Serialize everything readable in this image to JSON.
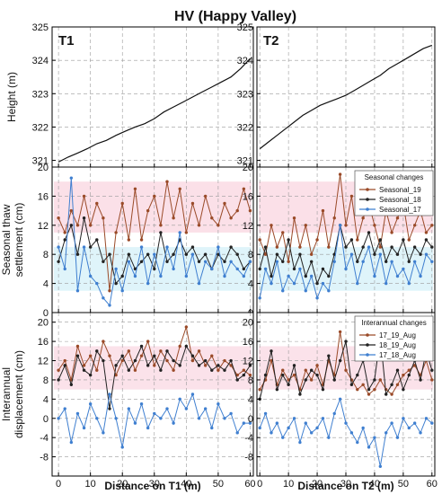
{
  "figure": {
    "title": "HV (Happy Valley)",
    "panel_labels": [
      "T1",
      "T2"
    ],
    "xlabels": [
      "Distance on T1 (m)",
      "Distance on T2 (m)"
    ],
    "ylabels": {
      "height": [
        "Height (m)"
      ],
      "seasonal": [
        "Seasonal thaw",
        "settlement (cm)"
      ],
      "interannual": [
        "Interannual",
        "displacement (cm)"
      ]
    },
    "legend_seasonal_title": "Seasonal changes",
    "legend_interannual_title": "Interannual changes",
    "colors": {
      "Seasonal_19": "#9a4a28",
      "Seasonal_18": "#222222",
      "Seasonal_17": "#3f7fd0",
      "17_19_Aug": "#9a4a28",
      "18_19_Aug": "#222222",
      "17_18_Aug": "#3f7fd0",
      "height_line": "#111111",
      "seasonal_band": "#f7c6d6",
      "seasonal_band_blue": "#c9ecf6",
      "interannual_band": "#f7c6d6"
    }
  },
  "chart_data": [
    {
      "type": "line",
      "row": "height",
      "transect": "T1",
      "xlim": [
        -2,
        61
      ],
      "ylim": [
        320.8,
        325
      ],
      "xticks": [
        0,
        10,
        20,
        30,
        40,
        50,
        60
      ],
      "yticks": [
        321,
        322,
        323,
        324,
        325
      ],
      "ylabel": "Height (m)",
      "grid": true,
      "series": [
        {
          "x": [
            0,
            3,
            6,
            9,
            12,
            15,
            18,
            21,
            24,
            27,
            30,
            33,
            36,
            39,
            42,
            45,
            48,
            51,
            54,
            57,
            60
          ],
          "y": [
            320.95,
            321.1,
            321.22,
            321.35,
            321.5,
            321.6,
            321.75,
            321.88,
            322.0,
            322.1,
            322.25,
            322.45,
            322.6,
            322.75,
            322.9,
            323.05,
            323.2,
            323.35,
            323.5,
            323.75,
            324.05
          ]
        }
      ]
    },
    {
      "type": "line",
      "row": "height",
      "transect": "T2",
      "xlim": [
        -1,
        61
      ],
      "ylim": [
        320.8,
        325
      ],
      "xticks": [
        0,
        10,
        20,
        30,
        40,
        50,
        60
      ],
      "yticks": [
        321,
        322,
        323,
        324,
        325
      ],
      "ylabel": "",
      "grid": true,
      "series": [
        {
          "x": [
            0,
            3,
            6,
            9,
            12,
            15,
            18,
            21,
            24,
            27,
            30,
            33,
            36,
            39,
            42,
            45,
            48,
            51,
            54,
            57,
            60
          ],
          "y": [
            321.35,
            321.55,
            321.75,
            321.95,
            322.15,
            322.35,
            322.5,
            322.65,
            322.75,
            322.85,
            322.95,
            323.1,
            323.25,
            323.4,
            323.55,
            323.75,
            323.9,
            324.05,
            324.2,
            324.35,
            324.45
          ]
        }
      ]
    },
    {
      "type": "line",
      "row": "seasonal",
      "transect": "T1",
      "xlim": [
        -2,
        61
      ],
      "ylim": [
        0,
        20
      ],
      "xticks": [
        0,
        10,
        20,
        30,
        40,
        50,
        60
      ],
      "yticks": [
        0,
        4,
        8,
        12,
        16,
        20
      ],
      "ylabel": "Seasonal thaw settlement (cm)",
      "grid": true,
      "series": [
        {
          "name": "Seasonal_19",
          "x": [
            0,
            2,
            4,
            6,
            8,
            10,
            12,
            14,
            16,
            18,
            20,
            22,
            24,
            26,
            28,
            30,
            32,
            34,
            36,
            38,
            40,
            42,
            44,
            46,
            48,
            50,
            52,
            54,
            56,
            58,
            60
          ],
          "y": [
            13,
            11,
            14,
            12,
            16,
            12,
            15,
            13,
            3,
            11,
            15,
            10,
            17,
            10,
            14,
            16,
            12,
            18,
            13,
            17,
            11,
            15,
            12,
            16,
            13,
            12,
            15,
            13,
            14,
            17,
            14
          ]
        },
        {
          "name": "Seasonal_18",
          "x": [
            0,
            2,
            4,
            6,
            8,
            10,
            12,
            14,
            16,
            18,
            20,
            22,
            24,
            26,
            28,
            30,
            32,
            34,
            36,
            38,
            40,
            42,
            44,
            46,
            48,
            50,
            52,
            54,
            56,
            58,
            60
          ],
          "y": [
            7,
            10,
            12,
            8,
            13,
            9,
            10,
            7,
            8,
            4,
            5,
            8,
            6,
            7,
            8,
            6,
            11,
            7,
            8,
            10,
            8,
            9,
            7,
            8,
            6,
            8,
            7,
            9,
            8,
            6,
            7
          ]
        },
        {
          "name": "Seasonal_17",
          "x": [
            0,
            2,
            4,
            6,
            8,
            10,
            12,
            14,
            16,
            18,
            20,
            22,
            24,
            26,
            28,
            30,
            32,
            34,
            36,
            38,
            40,
            42,
            44,
            46,
            48,
            50,
            52,
            54,
            56,
            58,
            60
          ],
          "y": [
            9,
            6,
            18.5,
            3,
            9,
            5,
            4,
            2,
            1,
            6,
            3,
            7,
            5,
            9,
            4,
            8,
            5,
            9,
            6,
            11,
            5,
            8,
            4,
            7,
            6,
            9,
            5,
            7,
            6,
            5,
            7
          ]
        }
      ]
    },
    {
      "type": "line",
      "row": "seasonal",
      "transect": "T2",
      "xlim": [
        -1,
        61
      ],
      "ylim": [
        0,
        20
      ],
      "xticks": [
        0,
        10,
        20,
        30,
        40,
        50,
        60
      ],
      "yticks": [
        0,
        4,
        8,
        12,
        16,
        20
      ],
      "ylabel": "",
      "grid": true,
      "legend": "top-right",
      "legend_title": "Seasonal changes",
      "series": [
        {
          "name": "Seasonal_19",
          "x": [
            0,
            2,
            4,
            6,
            8,
            10,
            12,
            14,
            16,
            18,
            20,
            22,
            24,
            26,
            28,
            30,
            32,
            34,
            36,
            38,
            40,
            42,
            44,
            46,
            48,
            50,
            52,
            54,
            56,
            58,
            60
          ],
          "y": [
            10,
            8,
            12,
            9,
            11,
            7,
            13,
            9,
            12,
            8,
            10,
            14,
            9,
            13,
            19,
            12,
            16,
            10,
            13,
            15,
            12,
            9,
            14,
            11,
            13,
            15,
            10,
            12,
            14,
            11,
            12
          ]
        },
        {
          "name": "Seasonal_18",
          "x": [
            0,
            2,
            4,
            6,
            8,
            10,
            12,
            14,
            16,
            18,
            20,
            22,
            24,
            26,
            28,
            30,
            32,
            34,
            36,
            38,
            40,
            42,
            44,
            46,
            48,
            50,
            52,
            54,
            56,
            58,
            60
          ],
          "y": [
            6,
            9,
            5,
            8,
            7,
            10,
            6,
            8,
            5,
            7,
            4,
            6,
            5,
            8,
            12,
            9,
            10,
            7,
            9,
            11,
            8,
            10,
            7,
            9,
            8,
            10,
            7,
            9,
            8,
            10,
            9
          ]
        },
        {
          "name": "Seasonal_17",
          "x": [
            0,
            2,
            4,
            6,
            8,
            10,
            12,
            14,
            16,
            18,
            20,
            22,
            24,
            26,
            28,
            30,
            32,
            34,
            36,
            38,
            40,
            42,
            44,
            46,
            48,
            50,
            52,
            54,
            56,
            58,
            60
          ],
          "y": [
            2,
            6,
            4,
            7,
            3,
            5,
            4,
            6,
            3,
            5,
            2,
            4,
            3,
            7,
            12,
            6,
            8,
            4,
            7,
            9,
            5,
            8,
            4,
            7,
            5,
            6,
            4,
            7,
            5,
            8,
            7
          ]
        }
      ]
    },
    {
      "type": "line",
      "row": "interannual",
      "transect": "T1",
      "xlim": [
        -2,
        61
      ],
      "ylim": [
        -12,
        22
      ],
      "xticks": [
        0,
        10,
        20,
        30,
        40,
        50,
        60
      ],
      "yticks": [
        -8,
        -4,
        0,
        4,
        8,
        12,
        16,
        20
      ],
      "ylabel": "Interannual displacement (cm)",
      "xlabel": "Distance on T1 (m)",
      "grid": true,
      "series": [
        {
          "name": "17_19_Aug",
          "x": [
            0,
            2,
            4,
            6,
            8,
            10,
            12,
            14,
            16,
            18,
            20,
            22,
            24,
            26,
            28,
            30,
            32,
            34,
            36,
            38,
            40,
            42,
            44,
            46,
            48,
            50,
            52,
            54,
            56,
            58,
            60
          ],
          "y": [
            10,
            12,
            8,
            15,
            11,
            13,
            10,
            16,
            13,
            9,
            12,
            14,
            10,
            13,
            16,
            11,
            14,
            12,
            10,
            15,
            19,
            12,
            14,
            11,
            13,
            10,
            12,
            11,
            9,
            10,
            9
          ]
        },
        {
          "name": "18_19_Aug",
          "x": [
            0,
            2,
            4,
            6,
            8,
            10,
            12,
            14,
            16,
            18,
            20,
            22,
            24,
            26,
            28,
            30,
            32,
            34,
            36,
            38,
            40,
            42,
            44,
            46,
            48,
            50,
            52,
            54,
            56,
            58,
            60
          ],
          "y": [
            8,
            11,
            7,
            13,
            10,
            9,
            14,
            12,
            2,
            11,
            13,
            10,
            12,
            15,
            11,
            13,
            10,
            14,
            12,
            11,
            15,
            13,
            11,
            12,
            10,
            11,
            10,
            12,
            8,
            9,
            11
          ]
        },
        {
          "name": "17_18_Aug",
          "x": [
            0,
            2,
            4,
            6,
            8,
            10,
            12,
            14,
            16,
            18,
            20,
            22,
            24,
            26,
            28,
            30,
            32,
            34,
            36,
            38,
            40,
            42,
            44,
            46,
            48,
            50,
            52,
            54,
            56,
            58,
            60
          ],
          "y": [
            0,
            2,
            -5,
            1,
            -2,
            3,
            0,
            -3,
            5,
            0,
            -6,
            2,
            -1,
            3,
            -2,
            1,
            0,
            2,
            -1,
            4,
            2,
            5,
            0,
            2,
            -2,
            3,
            0,
            1,
            -3,
            -1,
            -1
          ]
        }
      ]
    },
    {
      "type": "line",
      "row": "interannual",
      "transect": "T2",
      "xlim": [
        -1,
        61
      ],
      "ylim": [
        -12,
        22
      ],
      "xticks": [
        0,
        10,
        20,
        30,
        40,
        50,
        60
      ],
      "yticks": [
        -8,
        -4,
        0,
        4,
        8,
        12,
        16,
        20
      ],
      "ylabel": "",
      "xlabel": "Distance on T2 (m)",
      "grid": true,
      "legend": "top-right",
      "legend_title": "Interannual changes",
      "series": [
        {
          "name": "17_19_Aug",
          "x": [
            0,
            2,
            4,
            6,
            8,
            10,
            12,
            14,
            16,
            18,
            20,
            22,
            24,
            26,
            28,
            30,
            32,
            34,
            36,
            38,
            40,
            42,
            44,
            46,
            48,
            50,
            52,
            54,
            56,
            58,
            60
          ],
          "y": [
            6,
            8,
            12,
            7,
            10,
            8,
            9,
            6,
            10,
            8,
            11,
            7,
            12,
            9,
            18,
            10,
            8,
            6,
            7,
            5,
            6,
            8,
            6,
            5,
            7,
            9,
            10,
            11,
            9,
            12,
            8
          ]
        },
        {
          "name": "18_19_Aug",
          "x": [
            0,
            2,
            4,
            6,
            8,
            10,
            12,
            14,
            16,
            18,
            20,
            22,
            24,
            26,
            28,
            30,
            32,
            34,
            36,
            38,
            40,
            42,
            44,
            46,
            48,
            50,
            52,
            54,
            56,
            58,
            60
          ],
          "y": [
            4,
            9,
            14,
            6,
            9,
            7,
            11,
            5,
            8,
            10,
            9,
            6,
            13,
            8,
            12,
            16,
            7,
            9,
            12,
            6,
            8,
            17,
            5,
            7,
            10,
            6,
            9,
            12,
            8,
            14,
            10
          ]
        },
        {
          "name": "17_18_Aug",
          "x": [
            0,
            2,
            4,
            6,
            8,
            10,
            12,
            14,
            16,
            18,
            20,
            22,
            24,
            26,
            28,
            30,
            32,
            34,
            36,
            38,
            40,
            42,
            44,
            46,
            48,
            50,
            52,
            54,
            56,
            58,
            60
          ],
          "y": [
            -2,
            1,
            -3,
            -1,
            -4,
            -2,
            0,
            -5,
            -1,
            -3,
            -2,
            0,
            -4,
            1,
            4,
            -1,
            -3,
            -5,
            -2,
            -6,
            -4,
            -10,
            -3,
            -1,
            -4,
            0,
            -2,
            -1,
            -3,
            0,
            -1
          ]
        }
      ]
    }
  ]
}
